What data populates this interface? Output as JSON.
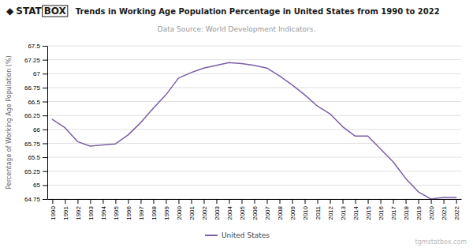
{
  "chart_data": {
    "type": "line",
    "title": "Trends in Working Age Population Percentage in United States from 1990 to 2022",
    "subtitle": "Data Source: World Development Indicators.",
    "y_label": "Percentage of Working Age Population (%)",
    "annotations": [
      "◆",
      "STAT",
      "BOX",
      "tgmstatbox.com"
    ],
    "x": [
      1990,
      1991,
      1992,
      1993,
      1994,
      1995,
      1996,
      1997,
      1998,
      1999,
      2000,
      2001,
      2002,
      2003,
      2004,
      2005,
      2006,
      2007,
      2008,
      2009,
      2010,
      2011,
      2012,
      2013,
      2014,
      2015,
      2016,
      2017,
      2018,
      2019,
      2020,
      2021,
      2022
    ],
    "series": [
      {
        "name": "United States",
        "color": "#7B5EA7",
        "values": [
          66.18,
          66.03,
          65.78,
          65.7,
          65.72,
          65.74,
          65.9,
          66.12,
          66.38,
          66.62,
          66.92,
          67.02,
          67.1,
          67.15,
          67.2,
          67.18,
          67.15,
          67.1,
          66.96,
          66.8,
          66.62,
          66.42,
          66.28,
          66.05,
          65.88,
          65.88,
          65.65,
          65.42,
          65.12,
          64.88,
          64.75,
          64.78,
          64.78
        ]
      }
    ],
    "xlim": [
      1989.6,
      2022.4
    ],
    "xticks": [
      1990,
      1991,
      1992,
      1993,
      1994,
      1995,
      1996,
      1997,
      1998,
      1999,
      2000,
      2001,
      2002,
      2003,
      2004,
      2005,
      2006,
      2007,
      2008,
      2009,
      2010,
      2011,
      2012,
      2013,
      2014,
      2015,
      2016,
      2017,
      2018,
      2019,
      2020,
      2021,
      2022
    ],
    "ylim": [
      64.75,
      67.5
    ],
    "yticks": [
      64.75,
      65,
      65.25,
      65.5,
      65.75,
      66,
      66.25,
      66.5,
      66.75,
      67,
      67.25,
      67.5
    ],
    "grid": true,
    "legend": "bottom"
  }
}
